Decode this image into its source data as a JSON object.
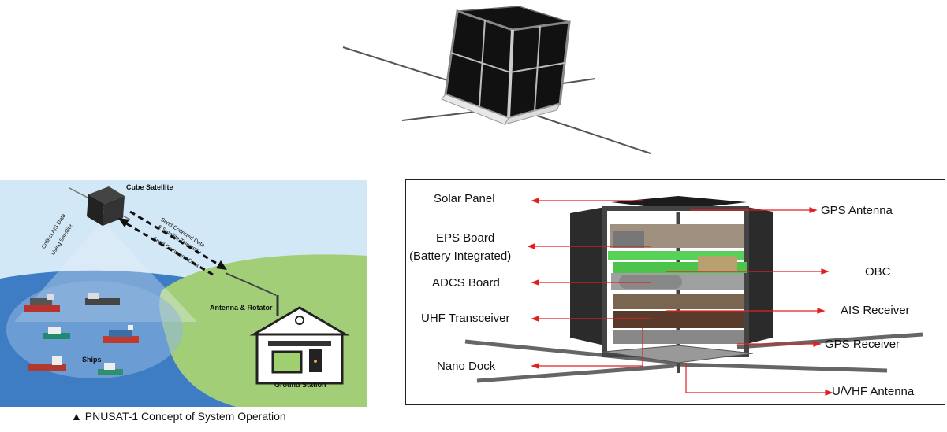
{
  "concept": {
    "cube_satellite": "Cube Satellite",
    "collect_ais": "Collect AIS Data",
    "using_satellite": "Using Satellite",
    "send_collected": "Send Collected Data",
    "sat_telemetry": "& Satellite Telemetry",
    "send_command": "Send Command Data",
    "antenna_rotator": "Antenna & Rotator",
    "ships": "Ships",
    "ground_station": "Ground Station",
    "caption": "▲ PNUSAT-1 Concept of System Operation"
  },
  "components": {
    "left": [
      "Solar Panel",
      "EPS Board",
      "(Battery Integrated)",
      "ADCS Board",
      "UHF Transceiver",
      "Nano Dock"
    ],
    "right": [
      "GPS Antenna",
      "OBC",
      "AIS Receiver",
      "GPS Receiver",
      "U/VHF Antenna"
    ]
  },
  "colors": {
    "sky": "#cfe6f5",
    "sea": "#3f7fc6",
    "land": "#9fcb74",
    "callout_line": "#e02020",
    "board": "#5cd65c"
  }
}
